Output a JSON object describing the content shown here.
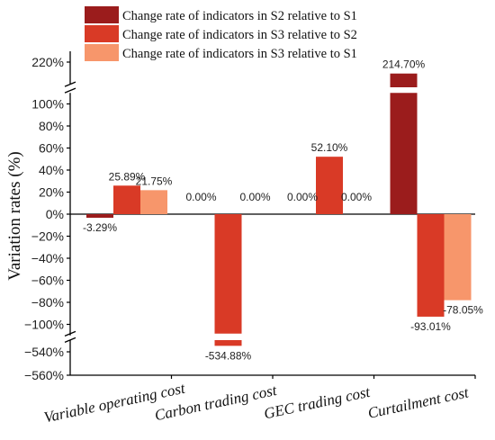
{
  "chart_data": {
    "type": "bar",
    "title": "",
    "xlabel": "",
    "ylabel": "Variation rates (%)",
    "categories": [
      "Variable operating cost",
      "Carbon trading cost",
      "GEC trading cost",
      "Curtailment cost"
    ],
    "series": [
      {
        "name": "Change rate of indicators in S2 relative to S1",
        "color": "#9b1c1c",
        "values": [
          -3.29,
          0.0,
          0.0,
          214.7
        ]
      },
      {
        "name": "Change rate of indicators in S3 relative to S2",
        "color": "#d93a26",
        "values": [
          25.89,
          -534.88,
          52.1,
          -93.01
        ]
      },
      {
        "name": "Change rate of indicators in S3 relative to S1",
        "color": "#f7966b",
        "values": [
          21.75,
          0.0,
          0.0,
          -78.05
        ]
      }
    ],
    "data_labels": [
      [
        "-3.29%",
        "0.00%",
        "0.00%",
        "214.70%"
      ],
      [
        "25.89%",
        "-534.88%",
        "52.10%",
        "-93.01%"
      ],
      [
        "21.75%",
        "0.00%",
        "0.00%",
        "-78.05%"
      ]
    ],
    "y_axis_break": {
      "lower_segment": [
        -560,
        -530
      ],
      "middle_segment": [
        -110,
        110
      ],
      "upper_segment": [
        210,
        225
      ]
    },
    "y_ticks": {
      "upper": [
        {
          "v": 220,
          "label": "220%"
        }
      ],
      "middle": [
        {
          "v": 100,
          "label": "100%"
        },
        {
          "v": 80,
          "label": "80%"
        },
        {
          "v": 60,
          "label": "60%"
        },
        {
          "v": 40,
          "label": "40%"
        },
        {
          "v": 20,
          "label": "20%"
        },
        {
          "v": 0,
          "label": "0%"
        },
        {
          "v": -20,
          "label": "−20%"
        },
        {
          "v": -40,
          "label": "−40%"
        },
        {
          "v": -60,
          "label": "−60%"
        },
        {
          "v": -80,
          "label": "−80%"
        },
        {
          "v": -100,
          "label": "−100%"
        }
      ],
      "lower": [
        {
          "v": -540,
          "label": "−540%"
        },
        {
          "v": -560,
          "label": "−560%"
        }
      ]
    },
    "legend": "top",
    "grid": false
  }
}
